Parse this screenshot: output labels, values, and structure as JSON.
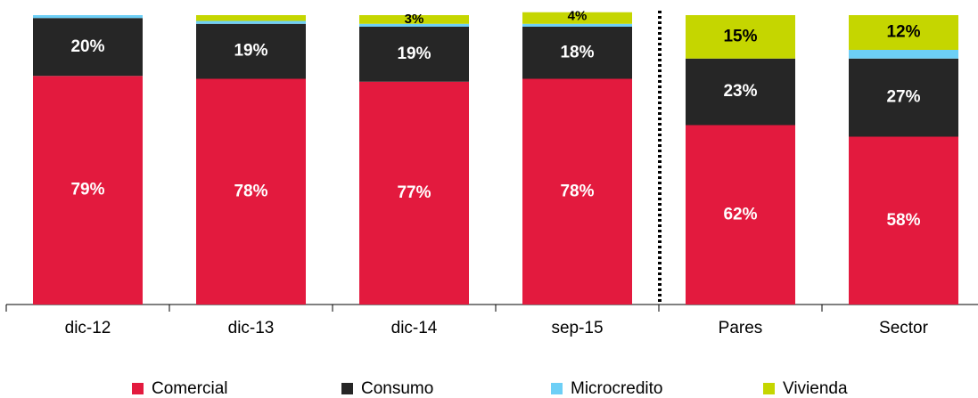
{
  "chart_data": {
    "type": "stacked-bar",
    "categories": [
      "dic-12",
      "dic-13",
      "dic-14",
      "sep-15",
      "Pares",
      "Sector"
    ],
    "ylim": [
      0,
      100
    ],
    "series": [
      {
        "name": "Comercial",
        "color": "#e31a3e",
        "values": [
          79,
          78,
          77,
          78,
          62,
          58
        ],
        "value_labels": [
          "79%",
          "78%",
          "77%",
          "78%",
          "62%",
          "58%"
        ]
      },
      {
        "name": "Consumo",
        "color": "#262626",
        "values": [
          20,
          19,
          19,
          18,
          23,
          27
        ],
        "value_labels": [
          "20%",
          "19%",
          "19%",
          "18%",
          "23%",
          "27%"
        ]
      },
      {
        "name": "Microcredito",
        "color": "#6dcff6",
        "values": [
          1,
          1,
          1,
          1,
          0,
          3
        ]
      },
      {
        "name": "Vivienda",
        "color": "#c5d600",
        "values": [
          0,
          2,
          3,
          4,
          15,
          12
        ],
        "value_labels": [
          null,
          null,
          "3%",
          "4%",
          "15%",
          "12%"
        ]
      }
    ]
  }
}
